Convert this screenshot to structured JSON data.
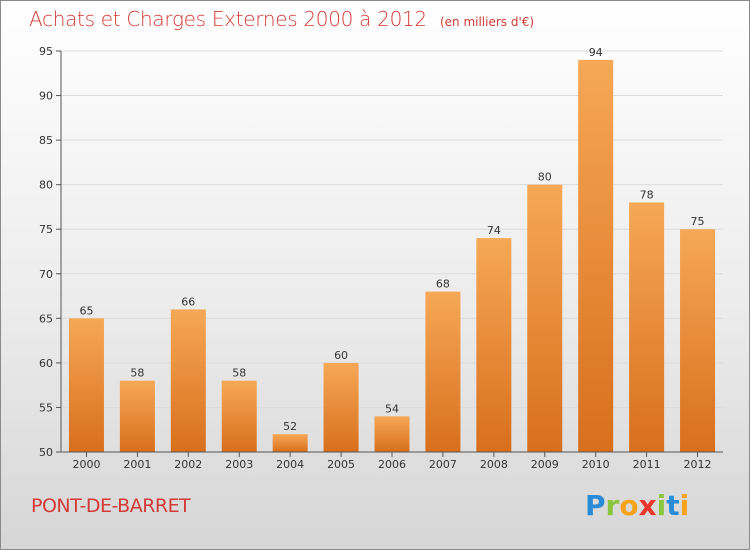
{
  "title": "Achats et Charges Externes 2000 à 2012",
  "unit_note": "(en milliers d'€)",
  "commune": "PONT-DE-BARRET",
  "brand": {
    "letters": [
      "P",
      "r",
      "o",
      "x",
      "i",
      "t",
      "i"
    ],
    "colors": [
      "#2a8bd6",
      "#8cc63f",
      "#f7a21b",
      "#e8362d",
      "#8cc63f",
      "#2a8bd6",
      "#f7a21b"
    ]
  },
  "colors": {
    "title": "#d43a36",
    "bar_top": "#f6a856",
    "bar_bottom": "#d86f1c",
    "axis": "#555555"
  },
  "chart_data": {
    "type": "bar",
    "categories": [
      "2000",
      "2001",
      "2002",
      "2003",
      "2004",
      "2005",
      "2006",
      "2007",
      "2008",
      "2009",
      "2010",
      "2011",
      "2012"
    ],
    "values": [
      65,
      58,
      66,
      58,
      52,
      60,
      54,
      68,
      74,
      80,
      94,
      78,
      75
    ],
    "title": "Achats et Charges Externes 2000 à 2012",
    "ylim": [
      50,
      95
    ],
    "yticks": [
      50,
      55,
      60,
      65,
      70,
      75,
      80,
      85,
      90,
      95
    ],
    "grid": true,
    "legend": "none"
  }
}
